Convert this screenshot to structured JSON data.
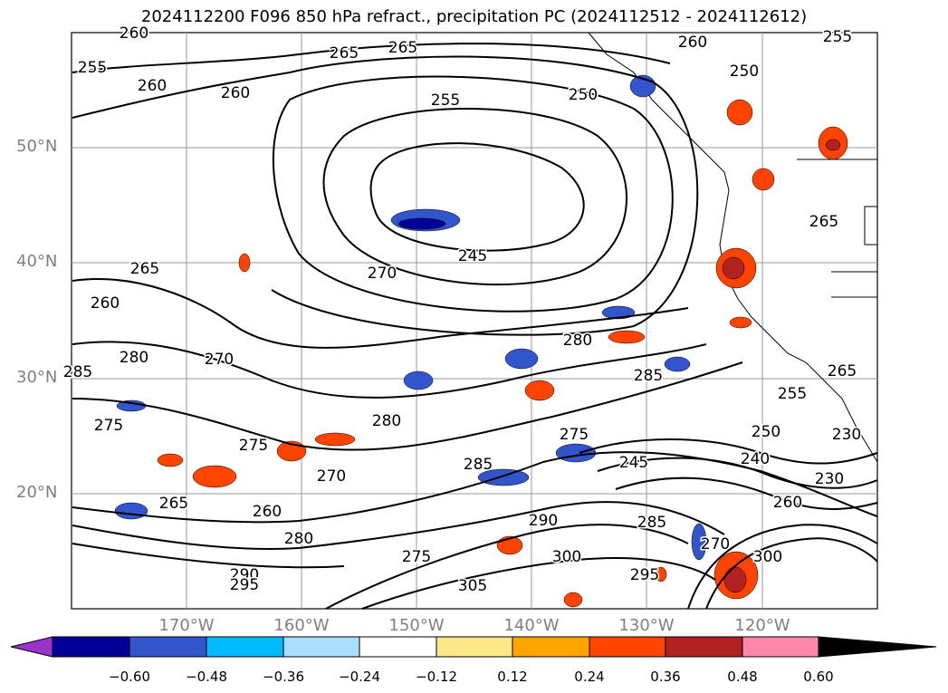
{
  "title": "2024112200 F096 850 hPa refract., precipitation PC (2024112512 - 2024112612)",
  "lat_labels": [
    "50°N",
    "40°N",
    "30°N",
    "20°N"
  ],
  "lon_labels": [
    "170°W",
    "160°W",
    "150°W",
    "140°W",
    "130°W",
    "120°W"
  ],
  "contour_labels": [
    "260",
    "255",
    "265",
    "265",
    "260",
    "255",
    "250",
    "260",
    "250",
    "255",
    "265",
    "260",
    "245",
    "270",
    "260",
    "265",
    "280",
    "270",
    "280",
    "285",
    "285",
    "275",
    "275",
    "270",
    "280",
    "285",
    "250",
    "230",
    "240",
    "260",
    "245",
    "265",
    "260",
    "280",
    "290",
    "285",
    "270",
    "275",
    "290",
    "295",
    "300",
    "295",
    "305",
    "300",
    "275",
    "255",
    "265",
    "230"
  ],
  "colorbar": {
    "ticks": [
      "−0.60",
      "−0.48",
      "−0.36",
      "−0.24",
      "−0.12",
      "0.12",
      "0.24",
      "0.36",
      "0.48",
      "0.60"
    ],
    "colors": [
      "#9933cc",
      "#000099",
      "#3355cc",
      "#00bbff",
      "#aaddff",
      "#ffffff",
      "#ffe88a",
      "#ffa500",
      "#ff4400",
      "#b22222",
      "#ff88aa"
    ]
  },
  "contour_levels": [
    230,
    235,
    240,
    245,
    250,
    255,
    260,
    265,
    270,
    275,
    280,
    285,
    290,
    295,
    300,
    305
  ],
  "grid": true
}
